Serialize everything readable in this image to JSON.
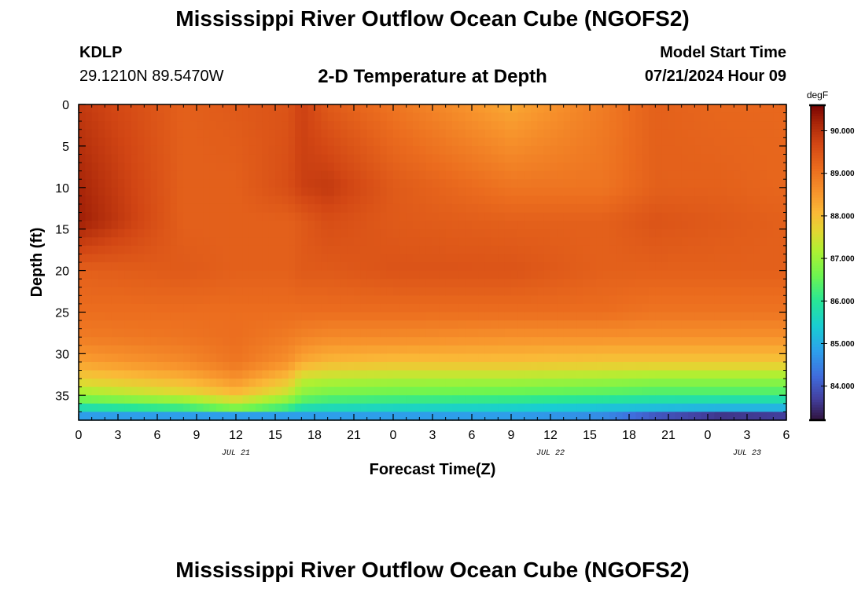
{
  "page": {
    "title": "Mississippi River Outflow Ocean Cube (NGOFS2)",
    "bottom_title": "Mississippi River Outflow Ocean Cube (NGOFS2)",
    "station_id": "KDLP",
    "coordinates": "29.1210N  89.5470W",
    "plot_title": "2-D Temperature at Depth",
    "model_start_label": "Model Start Time",
    "model_start_value": "07/21/2024 Hour 09"
  },
  "chart_data": {
    "type": "heatmap",
    "title": "2-D Temperature at Depth",
    "xlabel": "Forecast Time(Z)",
    "ylabel": "Depth (ft)",
    "x_range_hours": [
      0,
      54
    ],
    "x_tick_labels": [
      "0",
      "3",
      "6",
      "9",
      "12",
      "15",
      "18",
      "21",
      "0",
      "3",
      "6",
      "9",
      "12",
      "15",
      "18",
      "21",
      "0",
      "3",
      "6"
    ],
    "x_date_labels": [
      {
        "label": "JUL 21",
        "hour": 12
      },
      {
        "label": "JUL 22",
        "hour": 36
      },
      {
        "label": "JUL 23",
        "hour": 51
      }
    ],
    "y_range_ft": [
      0,
      38
    ],
    "y_ticks": [
      0,
      5,
      10,
      15,
      20,
      25,
      30,
      35
    ],
    "y_inverted": true,
    "colorbar": {
      "units": "degF",
      "range": [
        83.2,
        90.6
      ],
      "ticks": [
        "84.000",
        "85.000",
        "86.000",
        "87.000",
        "88.000",
        "89.000",
        "90.000"
      ],
      "tick_values": [
        84,
        85,
        86,
        87,
        88,
        89,
        90
      ]
    },
    "temperature_profiles": [
      {
        "hour": 0,
        "depths": [
          0,
          10,
          14,
          20,
          25,
          28,
          31,
          33,
          35,
          36.5,
          37.5
        ],
        "temps": [
          89.9,
          90.2,
          90.3,
          89.3,
          89.1,
          88.9,
          88.4,
          87.8,
          87.0,
          85.8,
          84.8
        ]
      },
      {
        "hour": 8,
        "depths": [
          0,
          10,
          14,
          20,
          25,
          28,
          31,
          33,
          35,
          36.5,
          37.5
        ],
        "temps": [
          89.3,
          89.3,
          89.3,
          89.4,
          89.1,
          89.0,
          88.7,
          88.2,
          87.5,
          86.2,
          84.8
        ]
      },
      {
        "hour": 12,
        "depths": [
          0,
          10,
          14,
          20,
          25,
          28,
          31,
          33,
          35,
          36.5,
          37.5
        ],
        "temps": [
          89.4,
          89.3,
          89.3,
          89.3,
          89.1,
          89.1,
          89.0,
          88.6,
          88.0,
          86.8,
          84.8
        ]
      },
      {
        "hour": 16,
        "depths": [
          0,
          10,
          14,
          20,
          25,
          28,
          31,
          33,
          35,
          36.5,
          37.5
        ],
        "temps": [
          89.5,
          89.6,
          89.3,
          89.3,
          89.1,
          88.9,
          88.6,
          88.0,
          87.3,
          86.2,
          84.8
        ]
      },
      {
        "hour": 17,
        "depths": [
          0,
          10,
          14,
          20,
          25,
          28,
          31,
          33,
          35,
          36.5,
          37.5
        ],
        "temps": [
          89.8,
          89.8,
          89.4,
          89.4,
          89.1,
          88.8,
          88.3,
          87.4,
          86.8,
          85.8,
          84.8
        ]
      },
      {
        "hour": 19,
        "depths": [
          0,
          10,
          14,
          20,
          25,
          28,
          31,
          33,
          35,
          36.5,
          37.5
        ],
        "temps": [
          89.4,
          89.9,
          89.6,
          89.4,
          89.1,
          88.7,
          88.1,
          87.3,
          86.6,
          85.7,
          84.8
        ]
      },
      {
        "hour": 24,
        "depths": [
          0,
          10,
          14,
          20,
          25,
          28,
          31,
          33,
          35,
          36.5,
          37.5
        ],
        "temps": [
          89.0,
          89.4,
          89.4,
          89.5,
          89.1,
          88.7,
          88.0,
          87.2,
          86.5,
          85.6,
          84.8
        ]
      },
      {
        "hour": 33,
        "depths": [
          0,
          10,
          14,
          20,
          25,
          28,
          31,
          33,
          35,
          36.5,
          37.5
        ],
        "temps": [
          88.3,
          89.0,
          89.3,
          89.5,
          89.1,
          88.6,
          88.0,
          87.2,
          86.4,
          85.5,
          84.8
        ]
      },
      {
        "hour": 40,
        "depths": [
          0,
          10,
          14,
          20,
          25,
          28,
          31,
          33,
          35,
          36.5,
          37.5
        ],
        "temps": [
          88.9,
          89.0,
          89.3,
          89.3,
          89.1,
          88.6,
          87.9,
          87.1,
          86.3,
          85.3,
          84.6
        ]
      },
      {
        "hour": 44,
        "depths": [
          0,
          10,
          14,
          20,
          25,
          28,
          31,
          33,
          35,
          36.5,
          37.5
        ],
        "temps": [
          89.3,
          89.3,
          89.5,
          89.3,
          89.0,
          88.6,
          87.9,
          87.0,
          86.2,
          85.2,
          84.0
        ]
      },
      {
        "hour": 49,
        "depths": [
          0,
          10,
          14,
          20,
          25,
          28,
          31,
          33,
          35,
          36.5,
          37.5
        ],
        "temps": [
          89.2,
          89.3,
          89.4,
          89.3,
          89.0,
          88.6,
          87.9,
          87.0,
          86.2,
          85.1,
          83.6
        ]
      },
      {
        "hour": 54,
        "depths": [
          0,
          10,
          14,
          20,
          25,
          28,
          31,
          33,
          35,
          36.5,
          37.5
        ],
        "temps": [
          89.2,
          89.2,
          89.3,
          89.3,
          89.0,
          88.6,
          87.9,
          87.0,
          86.2,
          85.1,
          83.7
        ]
      }
    ]
  }
}
